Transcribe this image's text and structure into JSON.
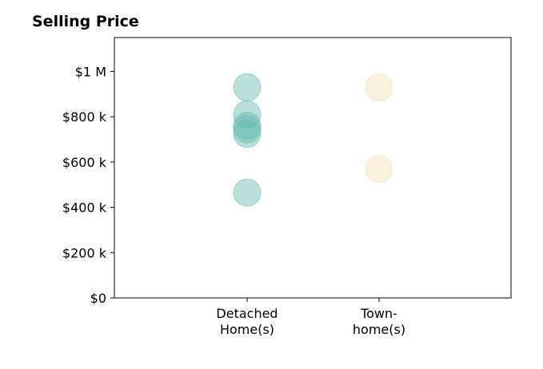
{
  "chart_data": {
    "type": "scatter",
    "title": "Selling Price",
    "xlabel": "",
    "ylabel": "",
    "categories": [
      "Detached\nHome(s)",
      "Town-\nhome(s)"
    ],
    "ylim": [
      0,
      1150000
    ],
    "yticks": [
      {
        "value": 0,
        "label": "$0"
      },
      {
        "value": 200000,
        "label": "$200 k"
      },
      {
        "value": 400000,
        "label": "$400 k"
      },
      {
        "value": 600000,
        "label": "$600 k"
      },
      {
        "value": 800000,
        "label": "$800 k"
      },
      {
        "value": 1000000,
        "label": "$1 M"
      }
    ],
    "grid": false,
    "series": [
      {
        "category_index": 0,
        "color": "#66bbb0",
        "values": [
          930000,
          810000,
          760000,
          745000,
          725000,
          465000
        ]
      },
      {
        "category_index": 1,
        "color": "#f5ddb0",
        "values": [
          930000,
          570000
        ]
      }
    ]
  }
}
